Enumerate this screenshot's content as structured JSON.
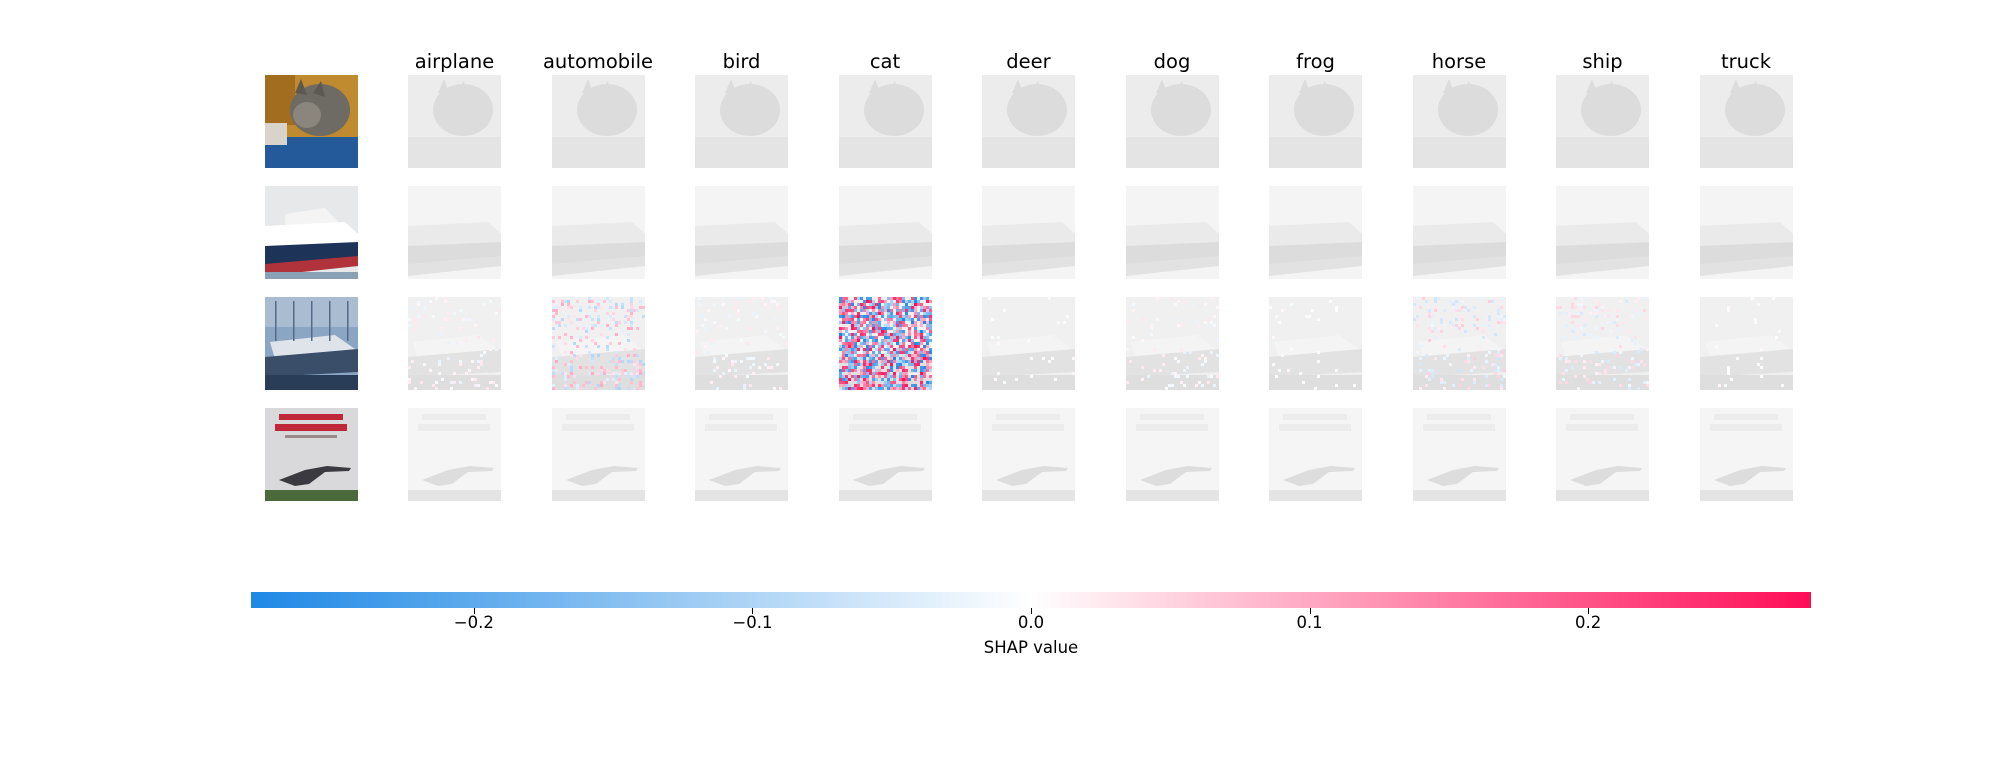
{
  "chart_data": {
    "type": "heatmap",
    "title": "",
    "class_labels": [
      "airplane",
      "automobile",
      "bird",
      "cat",
      "deer",
      "dog",
      "frog",
      "horse",
      "ship",
      "truck"
    ],
    "rows": [
      {
        "subject": "cat-image-icon",
        "shap_intensity": [
          0.002,
          0.002,
          0.002,
          0.002,
          0.002,
          0.002,
          0.002,
          0.002,
          0.002,
          0.002
        ]
      },
      {
        "subject": "ship-image-icon",
        "shap_intensity": [
          0.002,
          0.002,
          0.002,
          0.002,
          0.002,
          0.003,
          0.003,
          0.003,
          0.003,
          0.002
        ]
      },
      {
        "subject": "boat-image-icon",
        "shap_intensity": [
          0.03,
          0.1,
          0.03,
          0.28,
          0.01,
          0.03,
          0.01,
          0.06,
          0.05,
          0.01
        ]
      },
      {
        "subject": "airplane-poster-image-icon",
        "shap_intensity": [
          0.001,
          0.001,
          0.001,
          0.001,
          0.001,
          0.001,
          0.001,
          0.001,
          0.001,
          0.001
        ]
      }
    ],
    "colorbar": {
      "label": "SHAP value",
      "range": [
        -0.28,
        0.28
      ],
      "ticks": [
        -0.2,
        -0.1,
        0.0,
        0.1,
        0.2
      ],
      "tick_labels": [
        "−0.2",
        "−0.1",
        "0.0",
        "0.1",
        "0.2"
      ],
      "colors": {
        "negative": "#1e88e5",
        "zero": "#ffffff",
        "positive": "#ff0d57"
      }
    }
  }
}
